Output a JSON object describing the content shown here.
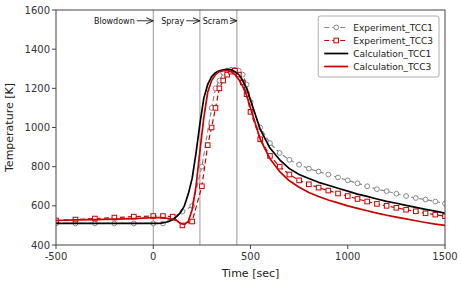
{
  "chart_data": {
    "type": "line",
    "xlabel": "Time [sec]",
    "ylabel": "Temperature [K]",
    "xlim": [
      -500,
      1500
    ],
    "ylim": [
      400,
      1600
    ],
    "xticks": [
      -500,
      0,
      500,
      1000,
      1500
    ],
    "yticks": [
      400,
      600,
      800,
      1000,
      1200,
      1400,
      1600
    ],
    "grid": false,
    "legend": "upper right",
    "vlines": [
      0,
      240,
      430
    ],
    "annotations": [
      {
        "label": "Blowdown",
        "text_x": -200,
        "arrow_x": 0,
        "y": 1545
      },
      {
        "label": "Spray",
        "text_x": 100,
        "arrow_x": 240,
        "y": 1545
      },
      {
        "label": "Scram",
        "text_x": 320,
        "arrow_x": 430,
        "y": 1545
      }
    ],
    "series": [
      {
        "name": "Experiment_TCC1",
        "color": "#888888",
        "marker": "circle",
        "line_style": "dashed",
        "x": [
          -500,
          -400,
          -300,
          -200,
          -100,
          0,
          50,
          100,
          150,
          200,
          250,
          300,
          320,
          340,
          360,
          380,
          400,
          420,
          440,
          460,
          480,
          500,
          550,
          600,
          650,
          700,
          750,
          800,
          850,
          900,
          950,
          1000,
          1050,
          1100,
          1150,
          1200,
          1250,
          1300,
          1350,
          1400,
          1450,
          1500
        ],
        "values": [
          510,
          510,
          510,
          510,
          510,
          510,
          510,
          540,
          570,
          600,
          800,
          1100,
          1200,
          1240,
          1280,
          1290,
          1295,
          1295,
          1290,
          1270,
          1220,
          1130,
          1000,
          920,
          870,
          835,
          810,
          790,
          775,
          760,
          745,
          730,
          715,
          700,
          685,
          675,
          662,
          650,
          640,
          632,
          622,
          612
        ]
      },
      {
        "name": "Experiment_TCC3",
        "color": "#cc0000",
        "marker": "square",
        "line_style": "dashed",
        "x": [
          -500,
          -400,
          -300,
          -200,
          -100,
          0,
          50,
          100,
          150,
          200,
          250,
          280,
          300,
          320,
          340,
          360,
          380,
          400,
          420,
          440,
          460,
          480,
          500,
          550,
          600,
          650,
          700,
          750,
          800,
          850,
          900,
          950,
          1000,
          1050,
          1100,
          1150,
          1200,
          1250,
          1300,
          1350,
          1400,
          1450,
          1500
        ],
        "values": [
          525,
          530,
          535,
          540,
          545,
          548,
          548,
          545,
          500,
          520,
          700,
          910,
          1000,
          1100,
          1200,
          1240,
          1270,
          1285,
          1290,
          1270,
          1230,
          1170,
          1080,
          940,
          855,
          800,
          760,
          730,
          710,
          693,
          678,
          663,
          650,
          635,
          622,
          610,
          600,
          590,
          580,
          572,
          562,
          555,
          547
        ]
      },
      {
        "name": "Calculation_TCC1",
        "color": "#000000",
        "marker": "none",
        "line_style": "solid",
        "x": [
          -500,
          -400,
          -300,
          -200,
          -100,
          0,
          20,
          40,
          60,
          80,
          100,
          120,
          140,
          160,
          180,
          200,
          220,
          240,
          260,
          280,
          300,
          320,
          340,
          360,
          380,
          400,
          420,
          440,
          460,
          480,
          500,
          550,
          600,
          650,
          700,
          750,
          800,
          850,
          900,
          950,
          1000,
          1050,
          1100,
          1150,
          1200,
          1250,
          1300,
          1350,
          1400,
          1450,
          1500
        ],
        "values": [
          510,
          510,
          510,
          510,
          510,
          510,
          510,
          512,
          515,
          520,
          530,
          545,
          565,
          600,
          660,
          740,
          870,
          1020,
          1150,
          1220,
          1260,
          1280,
          1290,
          1295,
          1297,
          1295,
          1285,
          1270,
          1240,
          1200,
          1140,
          990,
          895,
          835,
          790,
          760,
          740,
          720,
          705,
          690,
          675,
          660,
          648,
          635,
          623,
          613,
          602,
          592,
          582,
          573,
          563
        ]
      },
      {
        "name": "Calculation_TCC3",
        "color": "#cc0000",
        "marker": "none",
        "line_style": "solid",
        "x": [
          -500,
          -400,
          -300,
          -200,
          -100,
          0,
          20,
          40,
          60,
          80,
          100,
          120,
          140,
          160,
          180,
          200,
          220,
          240,
          260,
          280,
          300,
          320,
          340,
          360,
          380,
          400,
          420,
          440,
          460,
          480,
          500,
          550,
          600,
          650,
          700,
          750,
          800,
          850,
          900,
          950,
          1000,
          1050,
          1100,
          1150,
          1200,
          1250,
          1300,
          1350,
          1400,
          1450,
          1500
        ],
        "values": [
          525,
          528,
          530,
          532,
          535,
          540,
          540,
          540,
          538,
          535,
          530,
          525,
          510,
          505,
          520,
          580,
          700,
          880,
          1050,
          1180,
          1240,
          1270,
          1285,
          1290,
          1290,
          1285,
          1270,
          1245,
          1210,
          1165,
          1100,
          940,
          840,
          775,
          728,
          695,
          668,
          648,
          630,
          615,
          600,
          587,
          575,
          563,
          552,
          542,
          533,
          524,
          515,
          507,
          500
        ]
      }
    ]
  }
}
